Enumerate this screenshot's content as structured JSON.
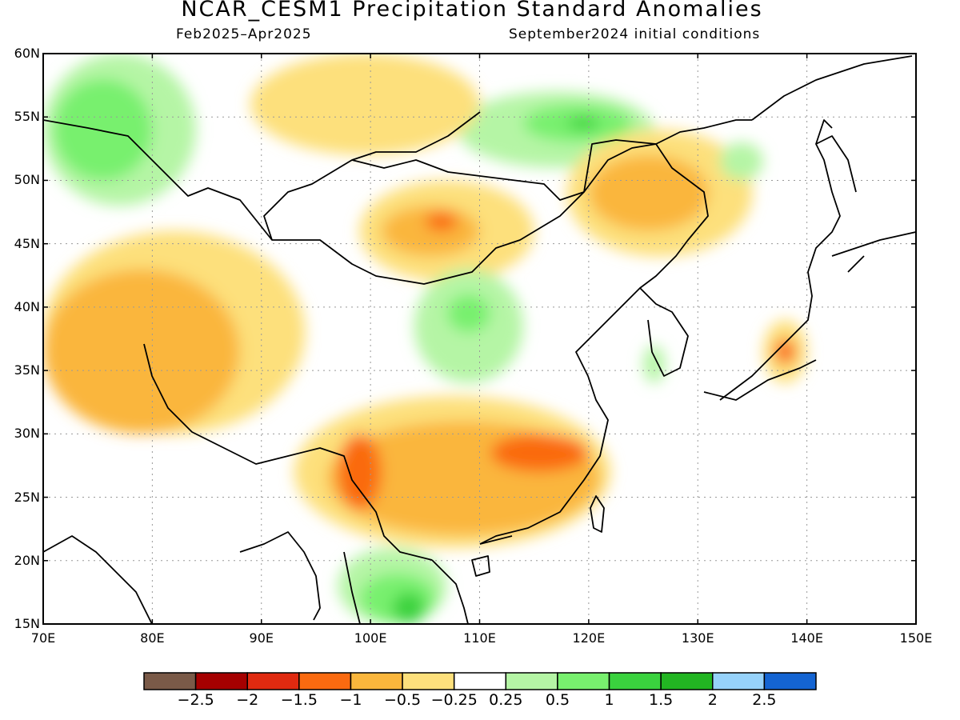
{
  "header": {
    "title": "NCAR_CESM1 Precipitation Standard Anomalies",
    "period": "Feb2025–Apr2025",
    "init": "September2024 initial conditions"
  },
  "axes": {
    "lat_labels": [
      "60N",
      "55N",
      "50N",
      "45N",
      "40N",
      "35N",
      "30N",
      "25N",
      "20N",
      "15N"
    ],
    "lon_labels": [
      "70E",
      "80E",
      "90E",
      "100E",
      "110E",
      "120E",
      "130E",
      "140E",
      "150E"
    ],
    "lon_range": [
      70,
      150
    ],
    "lat_range": [
      15,
      60
    ],
    "grid": true
  },
  "colors": {
    "land_line": "#000000",
    "grid_line": "#999999"
  },
  "colorbar": {
    "colors": [
      "#7a5a48",
      "#a50000",
      "#e02a10",
      "#fa6a10",
      "#fab63c",
      "#fde07c",
      "#ffffff",
      "#b5f5a5",
      "#78f06e",
      "#3ad23e",
      "#22b522",
      "#96d2fa",
      "#1464d2"
    ],
    "labels": [
      "−2.5",
      "−2",
      "−1.5",
      "−1",
      "−0.5",
      "−0.25",
      "0.25",
      "0.5",
      "1",
      "1.5",
      "2",
      "2.5"
    ]
  },
  "anomaly_regions": [
    {
      "level": "+0.5",
      "color": "#b5f5a5",
      "lon": [
        70,
        84
      ],
      "lat": [
        48,
        60
      ]
    },
    {
      "level": "+1",
      "color": "#78f06e",
      "lon": [
        71,
        80
      ],
      "lat": [
        50,
        58
      ]
    },
    {
      "level": "+0.5",
      "color": "#b5f5a5",
      "lon": [
        108,
        126
      ],
      "lat": [
        51,
        57
      ]
    },
    {
      "level": "+1",
      "color": "#78f06e",
      "lon": [
        114,
        124
      ],
      "lat": [
        53,
        56
      ]
    },
    {
      "level": "+1.5",
      "color": "#3ad23e",
      "lon": [
        118,
        121
      ],
      "lat": [
        54,
        55
      ]
    },
    {
      "level": "-0.5",
      "color": "#fde07c",
      "lon": [
        89,
        110
      ],
      "lat": [
        52,
        60
      ]
    },
    {
      "level": "-0.5",
      "color": "#fde07c",
      "lon": [
        99,
        115
      ],
      "lat": [
        42,
        50
      ]
    },
    {
      "level": "-1",
      "color": "#fab63c",
      "lon": [
        101,
        110
      ],
      "lat": [
        44,
        48
      ]
    },
    {
      "level": "-1.5",
      "color": "#fa6a10",
      "lon": [
        105,
        108
      ],
      "lat": [
        46,
        47.5
      ]
    },
    {
      "level": "-0.5",
      "color": "#fde07c",
      "lon": [
        118,
        135
      ],
      "lat": [
        44,
        54
      ]
    },
    {
      "level": "-1",
      "color": "#fab63c",
      "lon": [
        120,
        131
      ],
      "lat": [
        46,
        52
      ]
    },
    {
      "level": "-0.5",
      "color": "#fde07c",
      "lon": [
        70,
        94
      ],
      "lat": [
        30,
        46
      ]
    },
    {
      "level": "-1",
      "color": "#fab63c",
      "lon": [
        70,
        88
      ],
      "lat": [
        30,
        43
      ]
    },
    {
      "level": "+0.5",
      "color": "#b5f5a5",
      "lon": [
        104,
        114
      ],
      "lat": [
        34,
        43
      ]
    },
    {
      "level": "+1",
      "color": "#78f06e",
      "lon": [
        107,
        111
      ],
      "lat": [
        38,
        41
      ]
    },
    {
      "level": "-0.5",
      "color": "#fde07c",
      "lon": [
        93,
        122
      ],
      "lat": [
        21,
        33
      ]
    },
    {
      "level": "-1",
      "color": "#fab63c",
      "lon": [
        96,
        121
      ],
      "lat": [
        22,
        31
      ]
    },
    {
      "level": "-1.5",
      "color": "#fa6a10",
      "lon": [
        111,
        120
      ],
      "lat": [
        27,
        30
      ]
    },
    {
      "level": "-1.5",
      "color": "#fa6a10",
      "lon": [
        97,
        101
      ],
      "lat": [
        24,
        30
      ]
    },
    {
      "level": "+0.5",
      "color": "#b5f5a5",
      "lon": [
        97,
        107
      ],
      "lat": [
        15,
        21
      ]
    },
    {
      "level": "+1",
      "color": "#78f06e",
      "lon": [
        99,
        106
      ],
      "lat": [
        15,
        19
      ]
    },
    {
      "level": "+1.5",
      "color": "#3ad23e",
      "lon": [
        102,
        105
      ],
      "lat": [
        15,
        17.5
      ]
    },
    {
      "level": "-0.5",
      "color": "#fde07c",
      "lon": [
        136,
        140
      ],
      "lat": [
        34,
        39
      ]
    },
    {
      "level": "-1.5",
      "color": "#fa6a10",
      "lon": [
        137,
        139
      ],
      "lat": [
        35.5,
        37.5
      ]
    },
    {
      "level": "+0.5",
      "color": "#b5f5a5",
      "lon": [
        132,
        136
      ],
      "lat": [
        50,
        53
      ]
    },
    {
      "level": "+0.5",
      "color": "#b5f5a5",
      "lon": [
        125,
        127
      ],
      "lat": [
        34,
        37
      ]
    }
  ]
}
